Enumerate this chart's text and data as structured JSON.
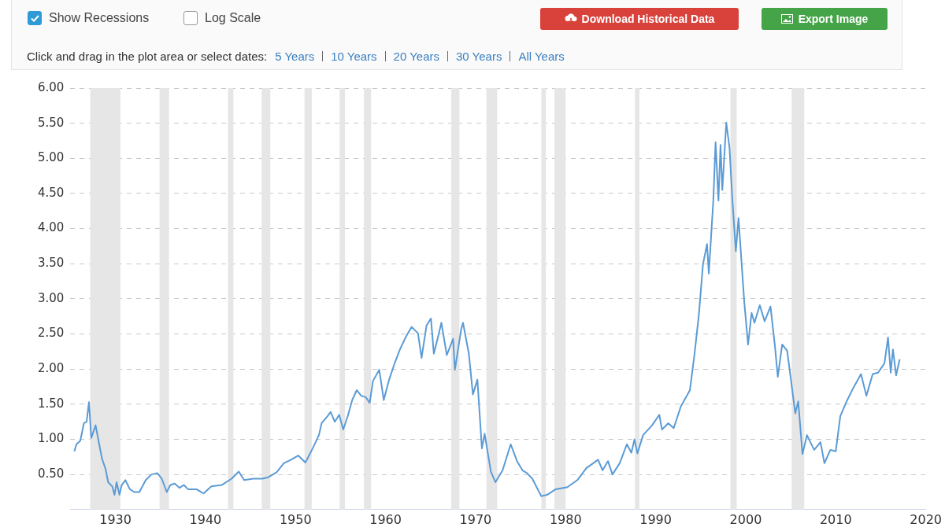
{
  "chart_data": {
    "type": "line",
    "annotations": [
      "Show Recessions",
      "Log Scale",
      "Download Historical Data",
      "Export Image",
      "Click and drag in the plot area or select dates:",
      "5 Years",
      "10 Years",
      "20 Years",
      "30 Years",
      "All Years"
    ],
    "series": [
      {
        "color": "#5b9bd5",
        "x": [
          1925.44,
          1925.67,
          1926.1,
          1926.5,
          1926.8,
          1927.06,
          1927.32,
          1927.8,
          1928.2,
          1928.5,
          1928.9,
          1929.2,
          1929.65,
          1929.9,
          1930.13,
          1930.45,
          1930.7,
          1931.1,
          1931.6,
          1932.1,
          1932.66,
          1933.37,
          1934.0,
          1934.66,
          1935.15,
          1935.7,
          1936.1,
          1936.6,
          1937.1,
          1937.6,
          1938.06,
          1939.0,
          1939.8,
          1940.65,
          1941.8,
          1942.9,
          1943.7,
          1944.3,
          1945.3,
          1946.3,
          1946.97,
          1947.9,
          1948.7,
          1949.5,
          1950.3,
          1951.1,
          1951.9,
          1952.6,
          1952.9,
          1953.55,
          1953.9,
          1954.36,
          1954.85,
          1955.3,
          1955.8,
          1956.3,
          1956.8,
          1957.3,
          1957.8,
          1958.24,
          1958.6,
          1959.3,
          1959.8,
          1960.35,
          1961.0,
          1961.6,
          1962.3,
          1962.9,
          1963.6,
          1964.0,
          1964.55,
          1965.04,
          1965.36,
          1965.85,
          1966.2,
          1966.8,
          1967.5,
          1967.7,
          1968.4,
          1968.6,
          1969.25,
          1969.7,
          1970.2,
          1970.7,
          1971.0,
          1971.7,
          1972.2,
          1973.0,
          1973.9,
          1974.6,
          1975.2,
          1975.7,
          1976.3,
          1977.3,
          1977.94,
          1978.9,
          1980.2,
          1981.3,
          1982.3,
          1983.6,
          1984.1,
          1984.7,
          1985.2,
          1986.0,
          1986.8,
          1987.3,
          1987.65,
          1987.97,
          1988.6,
          1989.6,
          1990.4,
          1990.7,
          1991.4,
          1992.0,
          1992.8,
          1993.8,
          1994.3,
          1994.8,
          1995.25,
          1995.7,
          1995.9,
          1996.4,
          1996.65,
          1996.97,
          1997.2,
          1997.4,
          1997.84,
          1998.2,
          1998.5,
          1998.9,
          1999.2,
          1999.84,
          2000.26,
          2000.65,
          2000.97,
          2001.56,
          2002.1,
          2002.75,
          2003.24,
          2003.56,
          2004.05,
          2004.6,
          2005.02,
          2005.5,
          2005.83,
          2006.3,
          2006.8,
          2007.6,
          2008.3,
          2008.74,
          2009.4,
          2010.0,
          2010.5,
          2011.2,
          2011.98,
          2012.8,
          2013.4,
          2014.1,
          2014.7,
          2015.4,
          2015.8,
          2016.1,
          2016.35,
          2016.7,
          2017.1
        ],
        "values": [
          0.83,
          0.93,
          0.98,
          1.23,
          1.25,
          1.53,
          1.02,
          1.2,
          0.93,
          0.73,
          0.58,
          0.39,
          0.33,
          0.21,
          0.39,
          0.21,
          0.35,
          0.42,
          0.29,
          0.25,
          0.25,
          0.42,
          0.5,
          0.52,
          0.44,
          0.25,
          0.35,
          0.37,
          0.31,
          0.35,
          0.29,
          0.29,
          0.23,
          0.33,
          0.35,
          0.44,
          0.54,
          0.42,
          0.44,
          0.44,
          0.46,
          0.53,
          0.66,
          0.71,
          0.77,
          0.67,
          0.87,
          1.06,
          1.23,
          1.33,
          1.39,
          1.25,
          1.35,
          1.14,
          1.33,
          1.56,
          1.7,
          1.62,
          1.6,
          1.52,
          1.83,
          1.99,
          1.56,
          1.83,
          2.08,
          2.28,
          2.47,
          2.6,
          2.51,
          2.16,
          2.62,
          2.72,
          2.22,
          2.47,
          2.66,
          2.2,
          2.43,
          1.99,
          2.57,
          2.66,
          2.22,
          1.64,
          1.85,
          0.87,
          1.08,
          0.54,
          0.39,
          0.56,
          0.93,
          0.69,
          0.56,
          0.52,
          0.44,
          0.19,
          0.21,
          0.29,
          0.32,
          0.42,
          0.59,
          0.71,
          0.56,
          0.69,
          0.5,
          0.66,
          0.93,
          0.81,
          1.0,
          0.8,
          1.06,
          1.2,
          1.35,
          1.14,
          1.23,
          1.16,
          1.47,
          1.7,
          2.2,
          2.78,
          3.49,
          3.78,
          3.36,
          4.4,
          5.23,
          4.4,
          5.19,
          4.55,
          5.51,
          5.15,
          4.44,
          3.68,
          4.15,
          2.95,
          2.35,
          2.8,
          2.66,
          2.91,
          2.68,
          2.89,
          2.33,
          1.89,
          2.35,
          2.26,
          1.85,
          1.37,
          1.54,
          0.79,
          1.06,
          0.85,
          0.96,
          0.66,
          0.85,
          0.83,
          1.33,
          1.54,
          1.74,
          1.93,
          1.62,
          1.93,
          1.95,
          2.08,
          2.45,
          1.95,
          2.28,
          1.91,
          2.14
        ]
      }
    ],
    "xlim": [
      1925,
      2020
    ],
    "xticks": [
      1930,
      1940,
      1950,
      1960,
      1970,
      1980,
      1990,
      2000,
      2010,
      2020
    ],
    "ylim": [
      0,
      6
    ],
    "yticks": [
      {
        "value": 0,
        "label": null
      },
      {
        "value": 0.5,
        "label": "0.50"
      },
      {
        "value": 1,
        "label": "1.00"
      },
      {
        "value": 1.5,
        "label": "1.50"
      },
      {
        "value": 2,
        "label": "2.00"
      },
      {
        "value": 2.5,
        "label": "2.50"
      },
      {
        "value": 3,
        "label": "3.00"
      },
      {
        "value": 3.5,
        "label": "3.50"
      },
      {
        "value": 4,
        "label": "4.00"
      },
      {
        "value": 4.5,
        "label": "4.50"
      },
      {
        "value": 5,
        "label": "5.00"
      },
      {
        "value": 5.5,
        "label": "5.50"
      },
      {
        "value": 6,
        "label": "6.00"
      }
    ],
    "grid": "y",
    "marker": "none",
    "line_style": "solid",
    "bands": [
      {
        "axis": "x",
        "from": 1927.2,
        "to": 1930.55,
        "color": "#e6e6e6"
      },
      {
        "axis": "x",
        "from": 1934.9,
        "to": 1935.95,
        "color": "#e6e6e6"
      },
      {
        "axis": "x",
        "from": 1942.5,
        "to": 1943.1,
        "color": "#e6e6e6"
      },
      {
        "axis": "x",
        "from": 1946.25,
        "to": 1947.2,
        "color": "#e6e6e6"
      },
      {
        "axis": "x",
        "from": 1951.0,
        "to": 1951.8,
        "color": "#e6e6e6"
      },
      {
        "axis": "x",
        "from": 1954.9,
        "to": 1955.5,
        "color": "#e6e6e6"
      },
      {
        "axis": "x",
        "from": 1957.6,
        "to": 1958.4,
        "color": "#e6e6e6"
      },
      {
        "axis": "x",
        "from": 1967.3,
        "to": 1968.2,
        "color": "#e6e6e6"
      },
      {
        "axis": "x",
        "from": 1971.2,
        "to": 1972.4,
        "color": "#e6e6e6"
      },
      {
        "axis": "x",
        "from": 1977.3,
        "to": 1977.8,
        "color": "#e6e6e6"
      },
      {
        "axis": "x",
        "from": 1978.75,
        "to": 1980.0,
        "color": "#e6e6e6"
      },
      {
        "axis": "x",
        "from": 1987.7,
        "to": 1988.2,
        "color": "#e6e6e6"
      },
      {
        "axis": "x",
        "from": 1998.3,
        "to": 1999.0,
        "color": "#e6e6e6"
      },
      {
        "axis": "x",
        "from": 2005.1,
        "to": 2006.5,
        "color": "#e6e6e6"
      }
    ]
  }
}
